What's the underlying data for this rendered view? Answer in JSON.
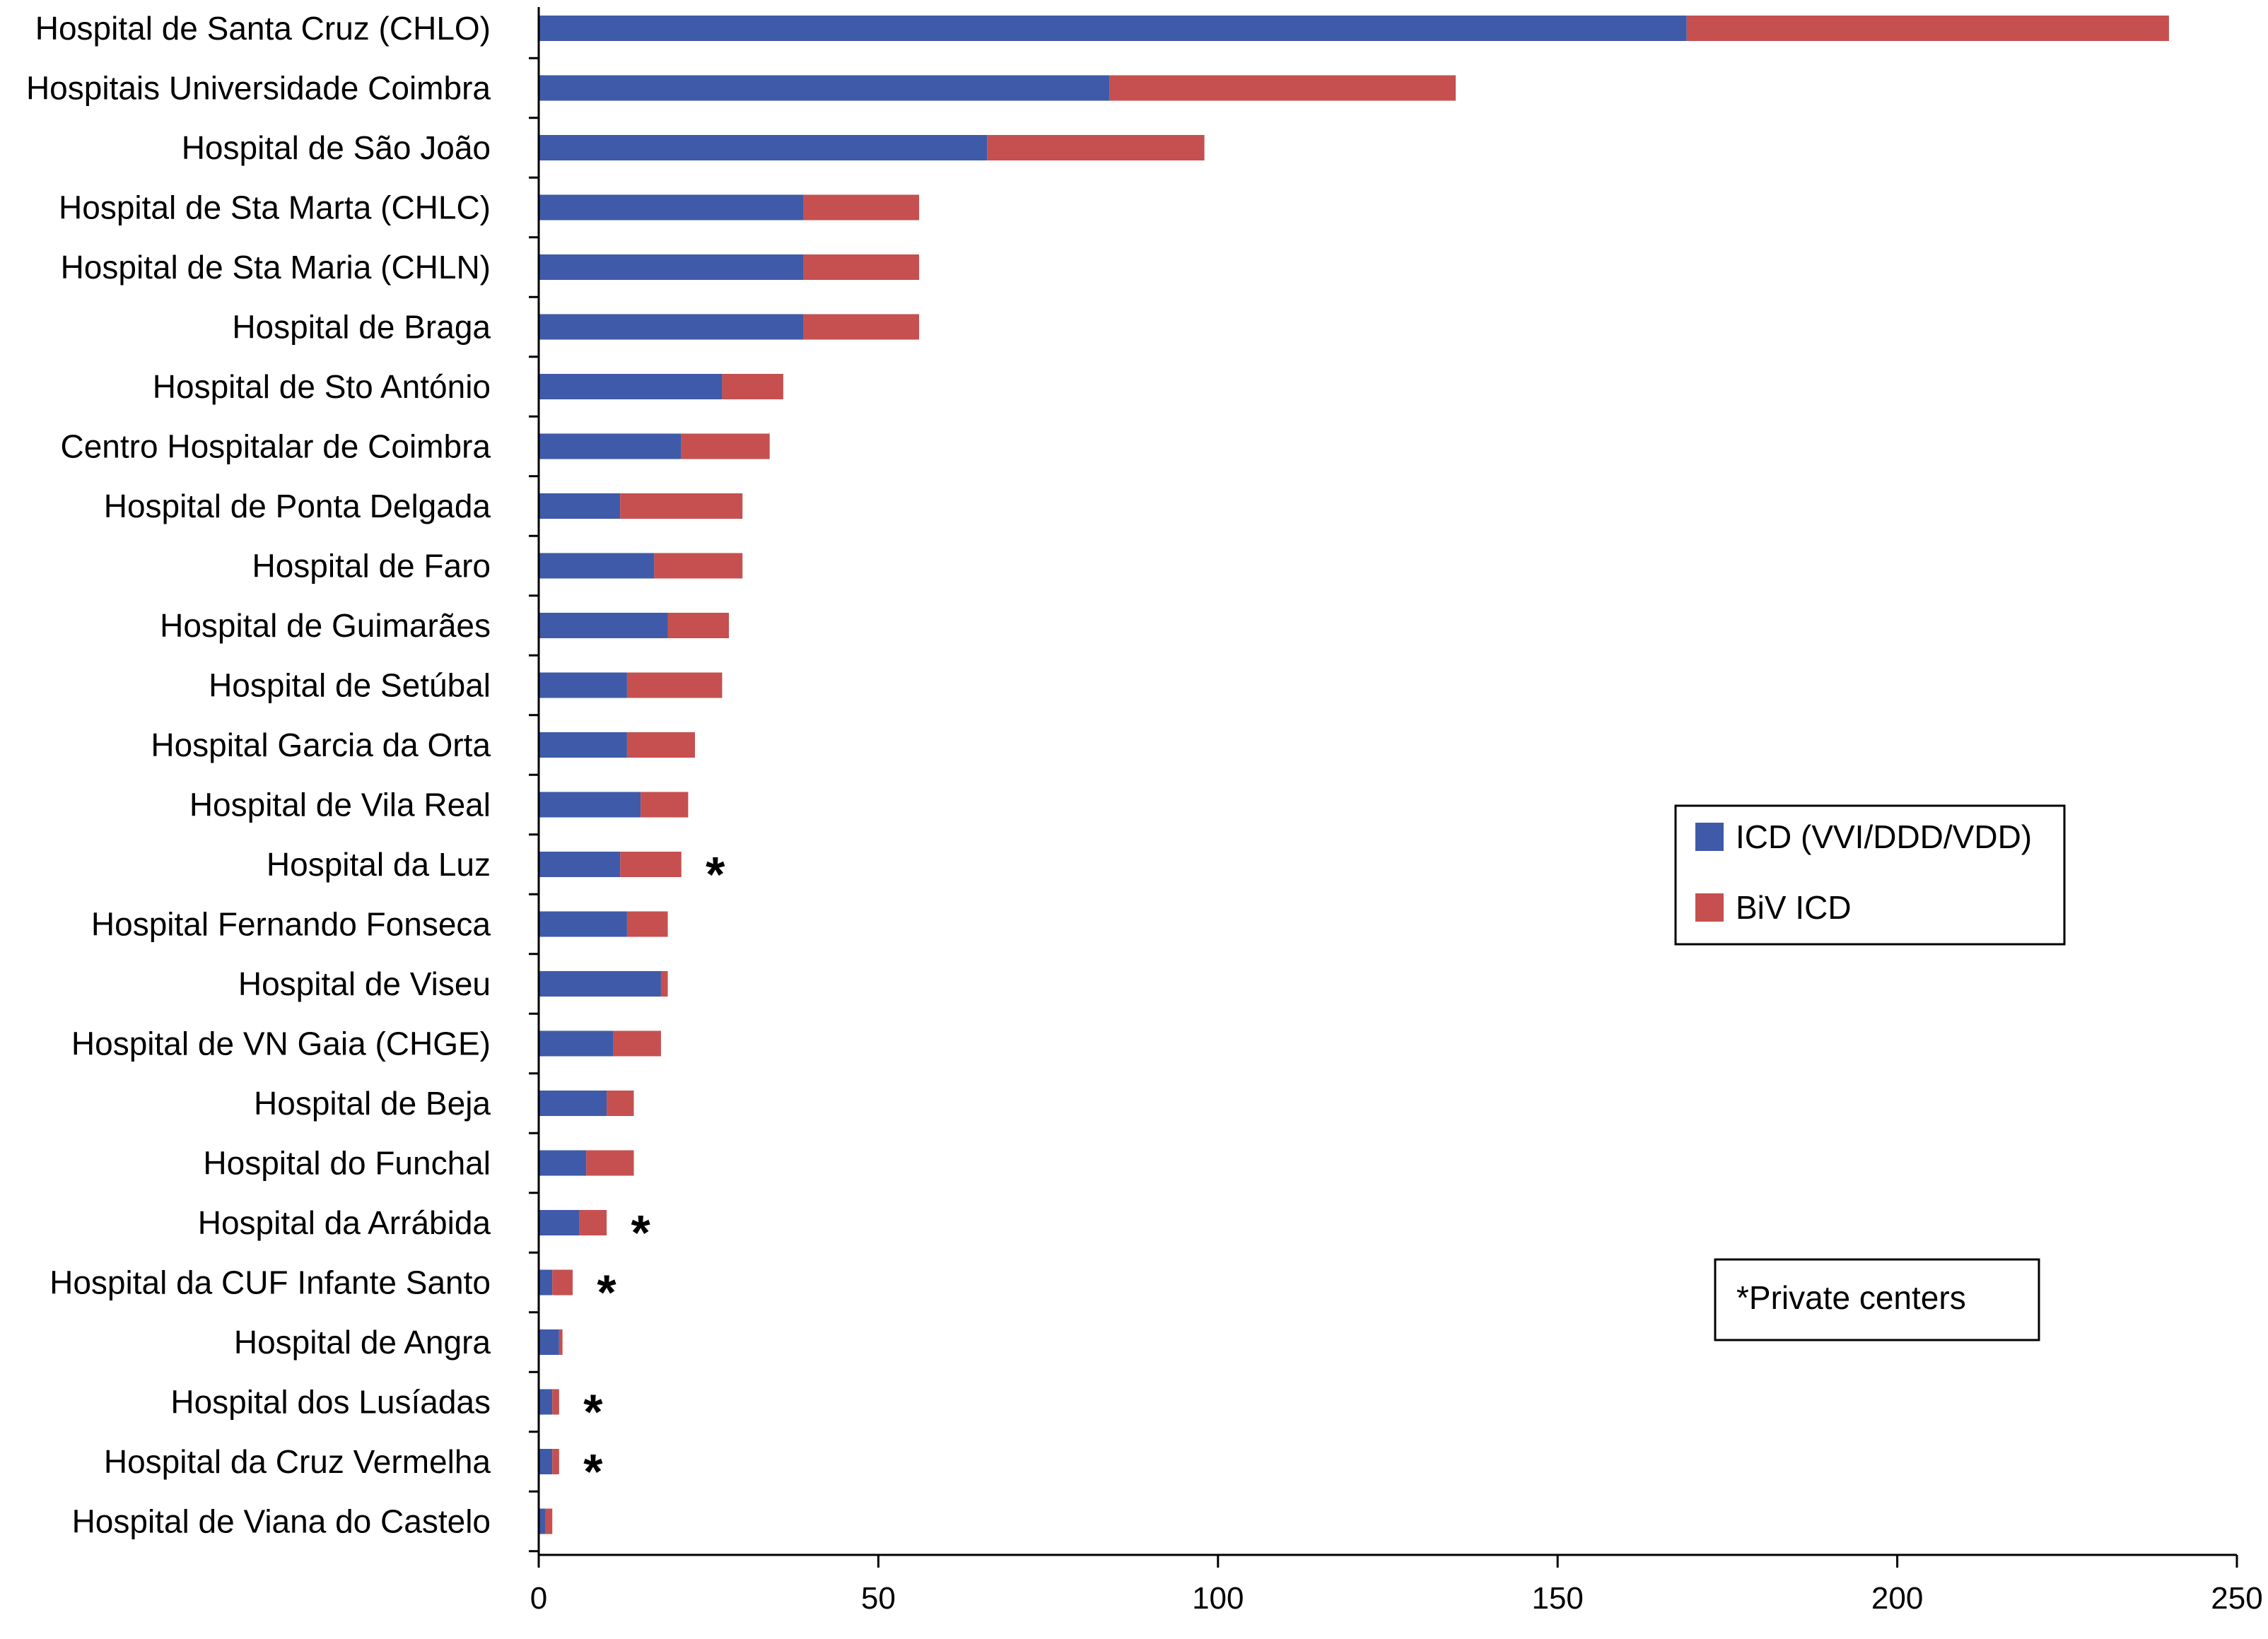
{
  "chart_data": {
    "type": "bar",
    "orientation": "horizontal",
    "stacked": true,
    "categories": [
      "Hospital de Santa Cruz (CHLO)",
      "Hospitais Universidade Coimbra",
      "Hospital de São João",
      "Hospital de Sta Marta (CHLC)",
      "Hospital de Sta Maria (CHLN)",
      "Hospital de Braga",
      "Hospital de Sto António",
      "Centro Hospitalar de Coimbra",
      "Hospital de Ponta Delgada",
      "Hospital de Faro",
      "Hospital de Guimarães",
      "Hospital de Setúbal",
      "Hospital Garcia da Orta",
      "Hospital de Vila Real",
      "Hospital da Luz",
      "Hospital Fernando Fonseca",
      "Hospital de Viseu",
      "Hospital de VN Gaia (CHGE)",
      "Hospital de Beja",
      "Hospital do Funchal",
      "Hospital da Arrábida",
      "Hospital da CUF Infante Santo",
      "Hospital de Angra",
      "Hospital dos Lusíadas",
      "Hospital da Cruz Vermelha",
      "Hospital de Viana do Castelo"
    ],
    "series": [
      {
        "name": "ICD (VVI/DDD/VDD)",
        "color": "#3f5aa8",
        "values": [
          169,
          84,
          66,
          39,
          39,
          39,
          27,
          21,
          12,
          17,
          19,
          13,
          13,
          15,
          12,
          13,
          18,
          11,
          10,
          7,
          6,
          2,
          3,
          2,
          2,
          1
        ]
      },
      {
        "name": "BiV ICD",
        "color": "#c5504f",
        "values": [
          71,
          51,
          32,
          17,
          17,
          17,
          9,
          13,
          18,
          13,
          9,
          14,
          10,
          7,
          9,
          6,
          1,
          7,
          4,
          7,
          4,
          3,
          0.5,
          1,
          1,
          1
        ]
      }
    ],
    "private_marker": "*",
    "private_centers": [
      "Hospital da Luz",
      "Hospital da Arrábida",
      "Hospital da CUF Infante Santo",
      "Hospital dos Lusíadas",
      "Hospital da Cruz Vermelha"
    ],
    "footnote": "*Private centers",
    "xlim": [
      0,
      250
    ],
    "xticks": [
      0,
      50,
      100,
      150,
      200,
      250
    ],
    "title": "",
    "xlabel": "",
    "ylabel": "",
    "grid": false,
    "legend_position": "right"
  }
}
